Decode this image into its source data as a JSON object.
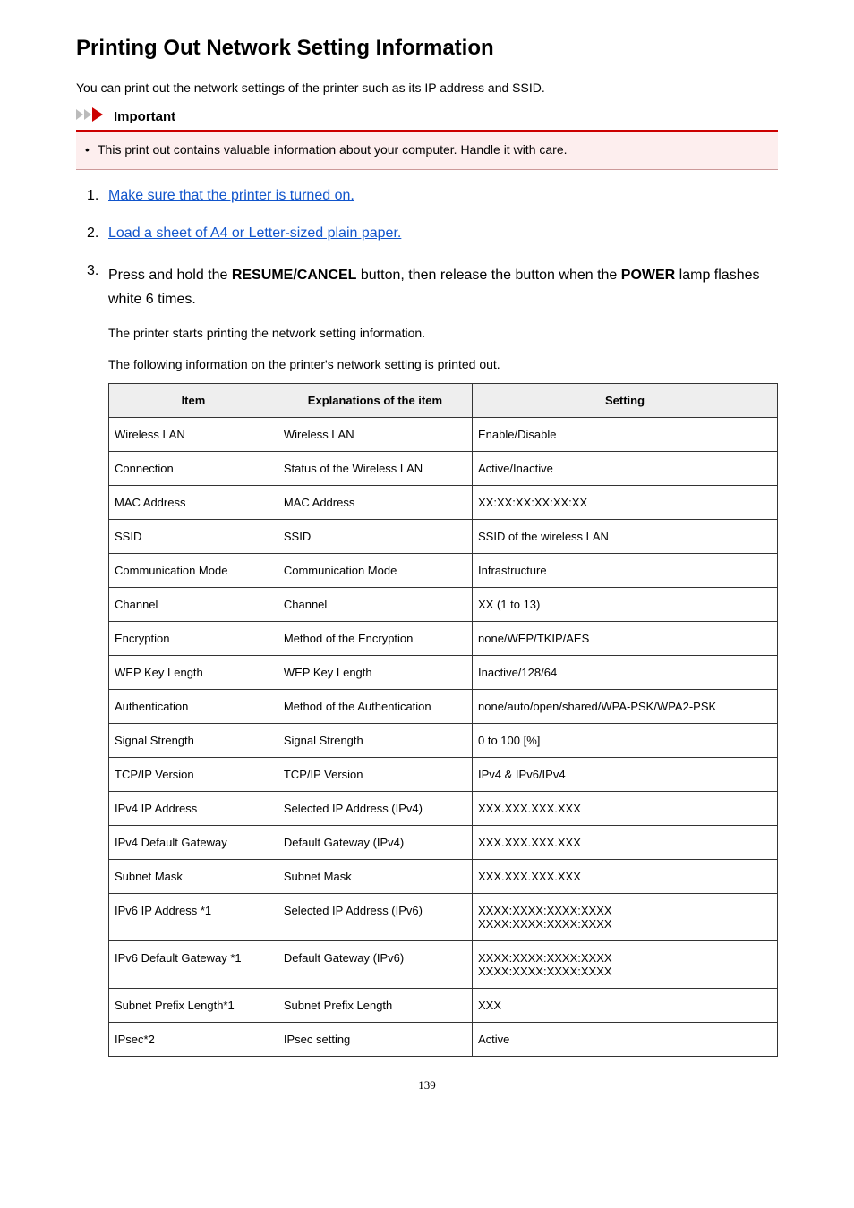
{
  "title": "Printing Out Network Setting Information",
  "intro": "You can print out the network settings of the printer such as its IP address and SSID.",
  "important": {
    "label": "Important",
    "items": [
      "This print out contains valuable information about your computer. Handle it with care."
    ],
    "border_top_color": "#cc0000",
    "background_color": "#fdeeee"
  },
  "steps": {
    "step1_link": "Make sure that the printer is turned on.",
    "step2_link": "Load a sheet of A4 or Letter-sized plain paper.",
    "step3_pre": "Press and hold the ",
    "step3_btn1": "RESUME/CANCEL",
    "step3_mid": " button, then release the button when the ",
    "step3_btn2": "POWER",
    "step3_post": " lamp flashes white 6 times.",
    "step3_sub1": "The printer starts printing the network setting information.",
    "step3_sub2": "The following information on the printer's network setting is printed out."
  },
  "table": {
    "headers": [
      "Item",
      "Explanations of the item",
      "Setting"
    ],
    "rows": [
      [
        "Wireless LAN",
        "Wireless LAN",
        "Enable/Disable"
      ],
      [
        "Connection",
        "Status of the Wireless LAN",
        "Active/Inactive"
      ],
      [
        "MAC Address",
        "MAC Address",
        "XX:XX:XX:XX:XX:XX"
      ],
      [
        "SSID",
        "SSID",
        "SSID of the wireless LAN"
      ],
      [
        "Communication Mode",
        "Communication Mode",
        "Infrastructure"
      ],
      [
        "Channel",
        "Channel",
        "XX (1 to 13)"
      ],
      [
        "Encryption",
        "Method of the Encryption",
        "none/WEP/TKIP/AES"
      ],
      [
        "WEP Key Length",
        "WEP Key Length",
        "Inactive/128/64"
      ],
      [
        "Authentication",
        "Method of the Authentication",
        "none/auto/open/shared/WPA-PSK/WPA2-PSK"
      ],
      [
        "Signal Strength",
        "Signal Strength",
        "0 to 100 [%]"
      ],
      [
        "TCP/IP Version",
        "TCP/IP Version",
        "IPv4 & IPv6/IPv4"
      ],
      [
        "IPv4 IP Address",
        "Selected IP Address (IPv4)",
        "XXX.XXX.XXX.XXX"
      ],
      [
        "IPv4 Default Gateway",
        "Default Gateway (IPv4)",
        "XXX.XXX.XXX.XXX"
      ],
      [
        "Subnet Mask",
        "Subnet Mask",
        "XXX.XXX.XXX.XXX"
      ],
      [
        "IPv6 IP Address *1",
        "Selected IP Address (IPv6)",
        "XXXX:XXXX:XXXX:XXXX\nXXXX:XXXX:XXXX:XXXX"
      ],
      [
        "IPv6 Default Gateway *1",
        "Default Gateway (IPv6)",
        "XXXX:XXXX:XXXX:XXXX\nXXXX:XXXX:XXXX:XXXX"
      ],
      [
        "Subnet Prefix Length*1",
        "Subnet Prefix Length",
        "XXX"
      ],
      [
        "IPsec*2",
        "IPsec setting",
        "Active"
      ]
    ]
  },
  "page_number": "139",
  "colors": {
    "link": "#1155cc",
    "text": "#000000",
    "icon_gray": "#bbbbbb",
    "icon_red": "#cc0000"
  }
}
